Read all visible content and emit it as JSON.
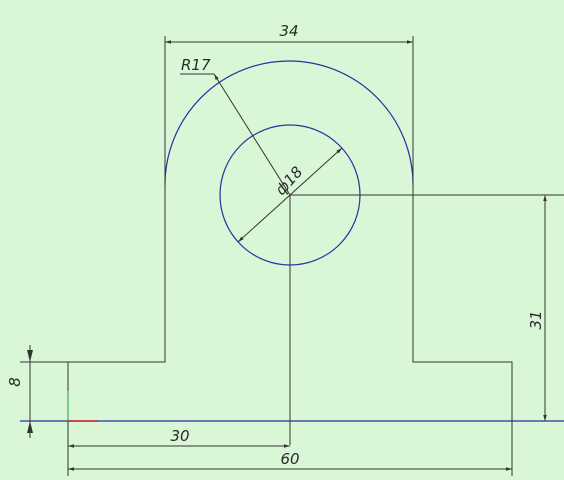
{
  "dimensions": [
    "34",
    "R17",
    "ф18",
    "31",
    "8",
    "30",
    "60"
  ]
}
